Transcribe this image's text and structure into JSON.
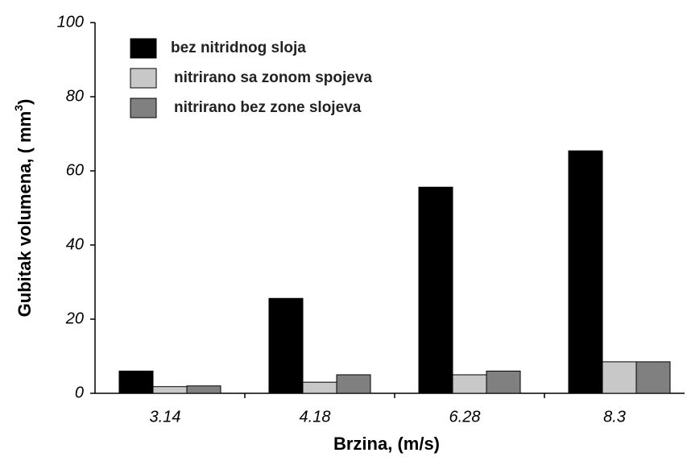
{
  "chart_data": {
    "type": "bar",
    "x_label": "Brzina, (m/s)",
    "y_label": {
      "text": "Gubitak volumena, ( mm",
      "superscript": "3",
      "end": ")"
    },
    "categories": [
      "3.14",
      "4.18",
      "6.28",
      "8.3"
    ],
    "series": [
      {
        "name": "bez nitridnog sloja",
        "color": "#000000",
        "values": [
          6,
          25.6,
          55.6,
          65.4
        ]
      },
      {
        "name": "nitrirano sa zonom spojeva",
        "color": "#c8c8c8",
        "values": [
          1.8,
          3,
          5,
          8.5
        ]
      },
      {
        "name": "nitrirano bez zone slojeva",
        "color": "#808080",
        "values": [
          2,
          5,
          6,
          8.5
        ]
      }
    ],
    "ylim": [
      0,
      100
    ],
    "yticks": [
      0,
      20,
      40,
      60,
      80,
      100
    ],
    "grid": false,
    "legend": "upper left"
  }
}
